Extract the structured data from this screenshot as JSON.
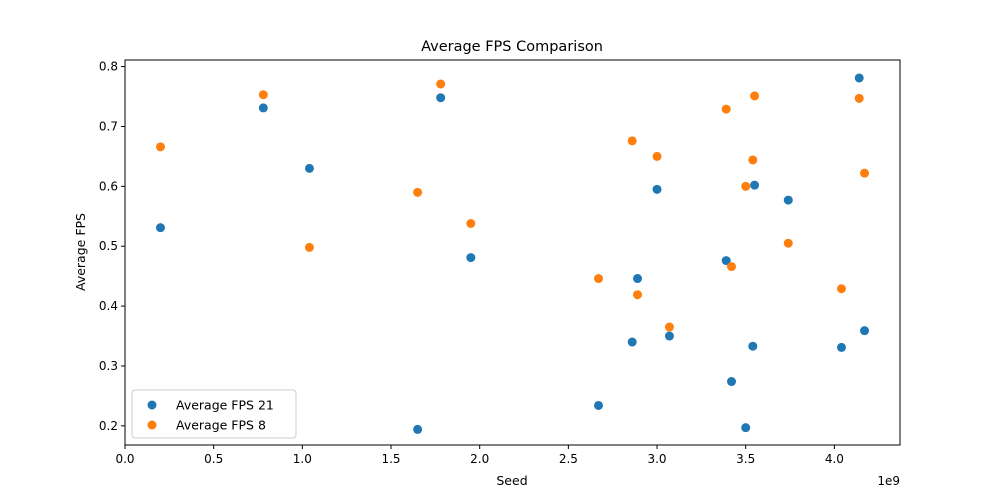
{
  "chart_data": {
    "type": "scatter",
    "title": "Average FPS Comparison",
    "xlabel": "Seed",
    "ylabel": "Average FPS",
    "x_offset_label": "1e9",
    "xlim": [
      0,
      4.37
    ],
    "ylim": [
      0.168,
      0.811
    ],
    "x_ticks": [
      0.0,
      0.5,
      1.0,
      1.5,
      2.0,
      2.5,
      3.0,
      3.5,
      4.0
    ],
    "x_tick_labels": [
      "0.0",
      "0.5",
      "1.0",
      "1.5",
      "2.0",
      "2.5",
      "3.0",
      "3.5",
      "4.0"
    ],
    "y_ticks": [
      0.2,
      0.3,
      0.4,
      0.5,
      0.6,
      0.7,
      0.8
    ],
    "y_tick_labels": [
      "0.2",
      "0.3",
      "0.4",
      "0.5",
      "0.6",
      "0.7",
      "0.8"
    ],
    "grid": false,
    "legend_position": "lower-left",
    "series": [
      {
        "name": "Average FPS 21",
        "color": "#1f77b4",
        "points": [
          [
            0.2,
            0.531
          ],
          [
            0.78,
            0.731
          ],
          [
            1.04,
            0.63
          ],
          [
            1.65,
            0.194
          ],
          [
            1.78,
            0.748
          ],
          [
            1.95,
            0.481
          ],
          [
            2.67,
            0.234
          ],
          [
            2.86,
            0.34
          ],
          [
            2.89,
            0.446
          ],
          [
            3.0,
            0.595
          ],
          [
            3.07,
            0.35
          ],
          [
            3.39,
            0.476
          ],
          [
            3.42,
            0.274
          ],
          [
            3.5,
            0.197
          ],
          [
            3.54,
            0.333
          ],
          [
            3.55,
            0.602
          ],
          [
            3.74,
            0.577
          ],
          [
            4.04,
            0.331
          ],
          [
            4.14,
            0.781
          ],
          [
            4.17,
            0.359
          ]
        ]
      },
      {
        "name": "Average FPS 8",
        "color": "#ff7f0e",
        "points": [
          [
            0.2,
            0.666
          ],
          [
            0.78,
            0.753
          ],
          [
            1.04,
            0.498
          ],
          [
            1.65,
            0.59
          ],
          [
            1.78,
            0.771
          ],
          [
            1.95,
            0.538
          ],
          [
            2.67,
            0.446
          ],
          [
            2.86,
            0.676
          ],
          [
            2.89,
            0.419
          ],
          [
            3.0,
            0.65
          ],
          [
            3.07,
            0.365
          ],
          [
            3.39,
            0.729
          ],
          [
            3.42,
            0.466
          ],
          [
            3.5,
            0.6
          ],
          [
            3.54,
            0.644
          ],
          [
            3.55,
            0.751
          ],
          [
            3.74,
            0.505
          ],
          [
            4.04,
            0.429
          ],
          [
            4.14,
            0.747
          ],
          [
            4.17,
            0.622
          ]
        ]
      }
    ]
  }
}
